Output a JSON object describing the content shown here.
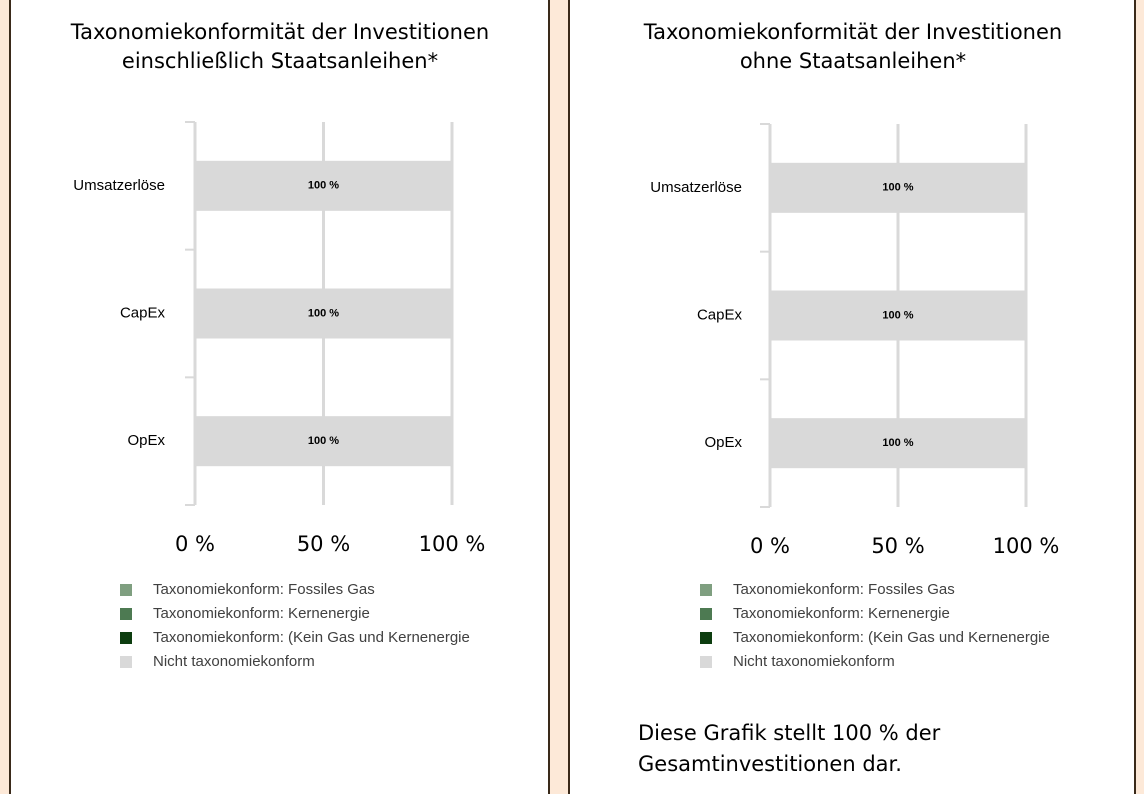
{
  "chart_data": [
    {
      "type": "bar",
      "orientation": "horizontal",
      "stacked": true,
      "title": [
        "Taxonomiekonformität der Investitionen",
        "einschließlich Staatsanleihen*"
      ],
      "categories": [
        "Umsatzerlöse",
        "CapEx",
        "OpEx"
      ],
      "series": [
        {
          "name": "Taxonomiekonform: Fossiles Gas",
          "color": "#7f9f80",
          "values": [
            0,
            0,
            0
          ]
        },
        {
          "name": "Taxonomiekonform: Kernenergie",
          "color": "#4d7a52",
          "values": [
            0,
            0,
            0
          ]
        },
        {
          "name": "Taxonomiekonform: (Kein Gas und Kernenergie",
          "color": "#0d3d0f",
          "values": [
            0,
            0,
            0
          ]
        },
        {
          "name": "Nicht taxonomiekonform",
          "color": "#d9d9d9",
          "values": [
            100,
            100,
            100
          ],
          "value_labels": [
            "100 %",
            "100 %",
            "100 %"
          ]
        }
      ],
      "xlim": [
        0,
        100
      ],
      "xticks": [
        {
          "value": 0,
          "label": "0 %"
        },
        {
          "value": 50,
          "label": "50 %"
        },
        {
          "value": 100,
          "label": "100 %"
        }
      ],
      "grid": true
    },
    {
      "type": "bar",
      "orientation": "horizontal",
      "stacked": true,
      "title": [
        "Taxonomiekonformität der Investitionen",
        "ohne Staatsanleihen*"
      ],
      "categories": [
        "Umsatzerlöse",
        "CapEx",
        "OpEx"
      ],
      "series": [
        {
          "name": "Taxonomiekonform: Fossiles Gas",
          "color": "#7f9f80",
          "values": [
            0,
            0,
            0
          ]
        },
        {
          "name": "Taxonomiekonform: Kernenergie",
          "color": "#4d7a52",
          "values": [
            0,
            0,
            0
          ]
        },
        {
          "name": "Taxonomiekonform: (Kein Gas und Kernenergie",
          "color": "#0d3d0f",
          "values": [
            0,
            0,
            0
          ]
        },
        {
          "name": "Nicht taxonomiekonform",
          "color": "#d9d9d9",
          "values": [
            100,
            100,
            100
          ],
          "value_labels": [
            "100 %",
            "100 %",
            "100 %"
          ]
        }
      ],
      "xlim": [
        0,
        100
      ],
      "xticks": [
        {
          "value": 0,
          "label": "0 %"
        },
        {
          "value": 50,
          "label": "50 %"
        },
        {
          "value": 100,
          "label": "100 %"
        }
      ],
      "grid": true,
      "note": [
        "Diese Grafik stellt 100 % der",
        "Gesamtinvestitionen dar."
      ]
    }
  ]
}
